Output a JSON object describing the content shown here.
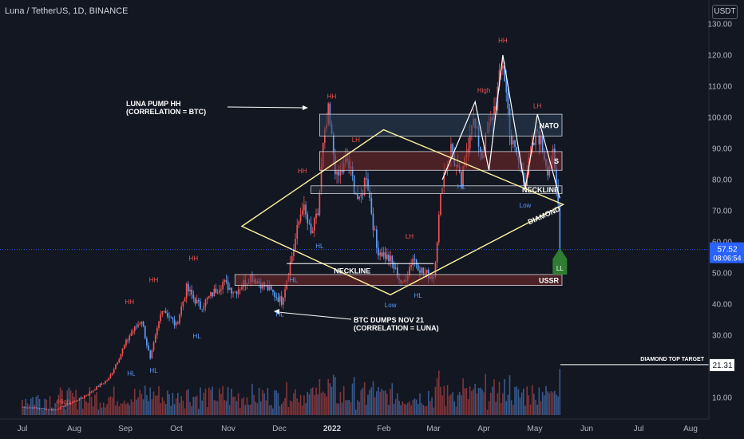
{
  "header": {
    "title": "Luna / TetherUS, 1D, BINANCE",
    "currency_badge": "USDT"
  },
  "colors": {
    "background": "#131722",
    "bull": "#ef5350",
    "bear": "#5b9cf6",
    "zone_red": "#7b2a2a",
    "zone_blue": "#2a3f55",
    "diamond": "#fff29e",
    "label_red": "#ef5350",
    "label_blue": "#5b9cf6",
    "annotation": "#ffffff",
    "price_badge": "#2962ff",
    "ll_badge": "#2e7d32"
  },
  "chart_data": {
    "type": "candlestick",
    "title": "Luna / TetherUS, 1D, BINANCE",
    "y_unit": "USDT",
    "x_ticks": [
      "Jul",
      "Aug",
      "Sep",
      "Oct",
      "Nov",
      "Dec",
      "2022",
      "Feb",
      "Mar",
      "Apr",
      "May",
      "Jun",
      "Jul",
      "Aug"
    ],
    "y_ticks": [
      "130.00",
      "120.00",
      "110.00",
      "100.00",
      "90.00",
      "80.00",
      "70.00",
      "60.00",
      "50.00",
      "40.00",
      "30.00",
      "20.00",
      "10.00"
    ],
    "ylim": [
      0,
      133
    ],
    "current_price": "57.52",
    "countdown": "08:06:54",
    "target_label": "DIAMOND TOP TARGET",
    "target_price": "21.31",
    "price_path": [
      {
        "date": "2021-07-01",
        "price": 7
      },
      {
        "date": "2021-07-20",
        "price": 6
      },
      {
        "date": "2021-08-05",
        "price": 10
      },
      {
        "date": "2021-08-20",
        "price": 16
      },
      {
        "date": "2021-09-01",
        "price": 30
      },
      {
        "date": "2021-09-08",
        "price": 35
      },
      {
        "date": "2021-09-13",
        "price": 22
      },
      {
        "date": "2021-09-20",
        "price": 39
      },
      {
        "date": "2021-09-28",
        "price": 33
      },
      {
        "date": "2021-10-04",
        "price": 45
      },
      {
        "date": "2021-10-12",
        "price": 39
      },
      {
        "date": "2021-10-25",
        "price": 47
      },
      {
        "date": "2021-11-01",
        "price": 44
      },
      {
        "date": "2021-11-10",
        "price": 49
      },
      {
        "date": "2021-11-20",
        "price": 45
      },
      {
        "date": "2021-11-28",
        "price": 41
      },
      {
        "date": "2021-12-05",
        "price": 58
      },
      {
        "date": "2021-12-10",
        "price": 72
      },
      {
        "date": "2021-12-15",
        "price": 62
      },
      {
        "date": "2021-12-19",
        "price": 69
      },
      {
        "date": "2021-12-22",
        "price": 90
      },
      {
        "date": "2021-12-25",
        "price": 101
      },
      {
        "date": "2021-12-30",
        "price": 80
      },
      {
        "date": "2022-01-05",
        "price": 86
      },
      {
        "date": "2022-01-12",
        "price": 72
      },
      {
        "date": "2022-01-16",
        "price": 82
      },
      {
        "date": "2022-01-22",
        "price": 58
      },
      {
        "date": "2022-01-30",
        "price": 54
      },
      {
        "date": "2022-02-06",
        "price": 46
      },
      {
        "date": "2022-02-12",
        "price": 55
      },
      {
        "date": "2022-02-18",
        "price": 50
      },
      {
        "date": "2022-02-24",
        "price": 49
      },
      {
        "date": "2022-03-01",
        "price": 80
      },
      {
        "date": "2022-03-06",
        "price": 90
      },
      {
        "date": "2022-03-12",
        "price": 78
      },
      {
        "date": "2022-03-18",
        "price": 100
      },
      {
        "date": "2022-03-24",
        "price": 88
      },
      {
        "date": "2022-04-01",
        "price": 105
      },
      {
        "date": "2022-04-05",
        "price": 118
      },
      {
        "date": "2022-04-10",
        "price": 92
      },
      {
        "date": "2022-04-18",
        "price": 80
      },
      {
        "date": "2022-04-25",
        "price": 96
      },
      {
        "date": "2022-05-01",
        "price": 84
      },
      {
        "date": "2022-05-04",
        "price": 87
      },
      {
        "date": "2022-05-07",
        "price": 72
      },
      {
        "date": "2022-05-08",
        "price": 57.52
      }
    ],
    "zones": [
      {
        "label": "NATO",
        "from": 94,
        "to": 101,
        "start": "2021-12-20",
        "kind": "blue"
      },
      {
        "label": "S",
        "from": 83,
        "to": 89,
        "start": "2021-12-20",
        "kind": "red"
      },
      {
        "label": "NECKLINE",
        "from": 75.5,
        "to": 78,
        "start": "2021-12-15",
        "kind": "neutral"
      },
      {
        "label": "USSR",
        "from": 46,
        "to": 49.5,
        "start": "2021-11-01",
        "kind": "red"
      }
    ],
    "diamond": {
      "label": "DIAMOND",
      "points": [
        {
          "date": "2021-11-05",
          "price": 65
        },
        {
          "date": "2022-01-26",
          "price": 96
        },
        {
          "date": "2022-05-10",
          "price": 72
        },
        {
          "date": "2022-01-30",
          "price": 43
        }
      ]
    },
    "necklines": [
      {
        "label": "NECKLINE",
        "from": "2021-12-01",
        "to": "2022-02-24",
        "price": 53
      }
    ],
    "markers": [
      {
        "text": "High",
        "date": "2021-07-25",
        "price": 8,
        "kind": "red"
      },
      {
        "text": "HH",
        "date": "2021-09-01",
        "price": 40,
        "kind": "red"
      },
      {
        "text": "HH",
        "date": "2021-09-15",
        "price": 47,
        "kind": "red"
      },
      {
        "text": "HH",
        "date": "2021-10-08",
        "price": 54,
        "kind": "red"
      },
      {
        "text": "HH",
        "date": "2021-12-10",
        "price": 82,
        "kind": "red"
      },
      {
        "text": "HH",
        "date": "2021-12-27",
        "price": 106,
        "kind": "red"
      },
      {
        "text": "LH",
        "date": "2022-01-10",
        "price": 92,
        "kind": "red"
      },
      {
        "text": "LH",
        "date": "2022-02-10",
        "price": 61,
        "kind": "red"
      },
      {
        "text": "High",
        "date": "2022-03-25",
        "price": 108,
        "kind": "red"
      },
      {
        "text": "HH",
        "date": "2022-04-05",
        "price": 124,
        "kind": "red"
      },
      {
        "text": "LH",
        "date": "2022-04-25",
        "price": 103,
        "kind": "red"
      },
      {
        "text": "HL",
        "date": "2021-09-02",
        "price": 17,
        "kind": "blue"
      },
      {
        "text": "HL",
        "date": "2021-09-15",
        "price": 18,
        "kind": "blue"
      },
      {
        "text": "HL",
        "date": "2021-10-10",
        "price": 29,
        "kind": "blue"
      },
      {
        "text": "HL",
        "date": "2021-11-27",
        "price": 36,
        "kind": "blue"
      },
      {
        "text": "HL",
        "date": "2021-12-05",
        "price": 47,
        "kind": "blue"
      },
      {
        "text": "HL",
        "date": "2021-12-20",
        "price": 58,
        "kind": "blue"
      },
      {
        "text": "Low",
        "date": "2022-01-30",
        "price": 39,
        "kind": "blue"
      },
      {
        "text": "HL",
        "date": "2022-02-15",
        "price": 42,
        "kind": "blue"
      },
      {
        "text": "HL",
        "date": "2022-03-12",
        "price": 77,
        "kind": "blue"
      },
      {
        "text": "Low",
        "date": "2022-04-18",
        "price": 71,
        "kind": "blue"
      }
    ],
    "ll_label": "LL",
    "annotations": [
      {
        "line1": "LUNA PUMP HH",
        "line2": "(CORRELATION = BTC)"
      },
      {
        "line1": "BTC DUMPS NOV 21",
        "line2": "(CORRELATION = LUNA)"
      }
    ]
  }
}
